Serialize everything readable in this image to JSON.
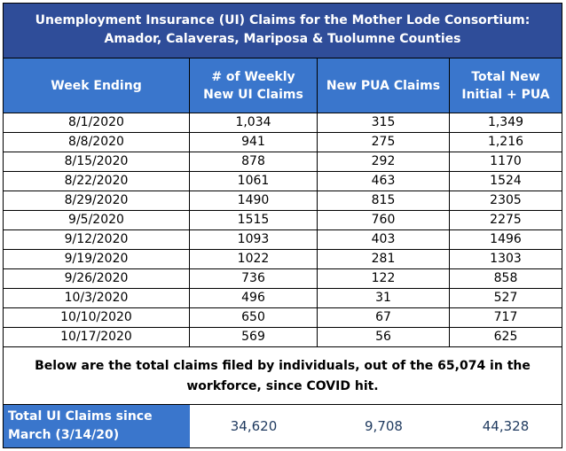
{
  "title": {
    "line1": "Unemployment Insurance (UI) Claims for the Mother Lode Consortium:",
    "line2": "Amador, Calaveras, Mariposa & Tuolumne Counties"
  },
  "columns": [
    "Week Ending",
    "# of Weekly New UI Claims",
    "New PUA Claims",
    "Total New Initial + PUA"
  ],
  "rows": [
    [
      "8/1/2020",
      "1,034",
      "315",
      "1,349"
    ],
    [
      "8/8/2020",
      "941",
      "275",
      "1,216"
    ],
    [
      "8/15/2020",
      "878",
      "292",
      "1170"
    ],
    [
      "8/22/2020",
      "1061",
      "463",
      "1524"
    ],
    [
      "8/29/2020",
      "1490",
      "815",
      "2305"
    ],
    [
      "9/5/2020",
      "1515",
      "760",
      "2275"
    ],
    [
      "9/12/2020",
      "1093",
      "403",
      "1496"
    ],
    [
      "9/19/2020",
      "1022",
      "281",
      "1303"
    ],
    [
      "9/26/2020",
      "736",
      "122",
      "858"
    ],
    [
      "10/3/2020",
      "496",
      "31",
      "527"
    ],
    [
      "10/10/2020",
      "650",
      "67",
      "717"
    ],
    [
      "10/17/2020",
      "569",
      "56",
      "625"
    ]
  ],
  "note": "Below are the total claims filed by individuals, out of the 65,074 in the workforce, since COVID hit.",
  "totals": {
    "label": "Total UI Claims since March (3/14/20)",
    "ui_claims": "34,620",
    "pua_claims": "9,708",
    "total": "44,328"
  },
  "colors": {
    "title_bg": "#2f4d99",
    "header_bg": "#3a76cc",
    "total_value_text": "#1f3a5f"
  }
}
